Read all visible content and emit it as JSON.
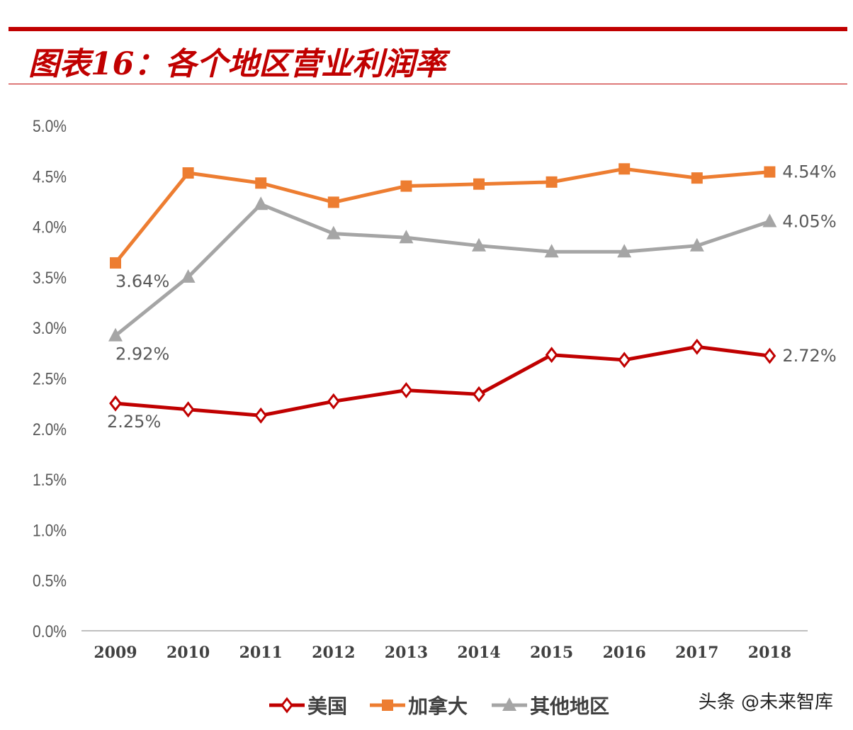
{
  "header": {
    "title": "图表16：各个地区营业利润率"
  },
  "watermark": "头条 @未来智库",
  "chart_data": {
    "type": "line",
    "title": "",
    "categories": [
      "2009",
      "2010",
      "2011",
      "2012",
      "2013",
      "2014",
      "2015",
      "2016",
      "2017",
      "2018"
    ],
    "ylim": [
      0,
      5.0
    ],
    "yticks": [
      "0.0%",
      "0.5%",
      "1.0%",
      "1.5%",
      "2.0%",
      "2.5%",
      "3.0%",
      "3.5%",
      "4.0%",
      "4.5%",
      "5.0%"
    ],
    "grid": false,
    "legend": "bottom",
    "series": [
      {
        "name": "美国",
        "color": "#c00000",
        "marker": "diamond-open",
        "values": [
          2.25,
          2.19,
          2.13,
          2.27,
          2.38,
          2.34,
          2.73,
          2.68,
          2.81,
          2.72
        ],
        "labels": {
          "0": "2.25%",
          "9": "2.72%"
        }
      },
      {
        "name": "加拿大",
        "color": "#ed7d31",
        "marker": "square",
        "values": [
          3.64,
          4.53,
          4.43,
          4.24,
          4.4,
          4.42,
          4.44,
          4.57,
          4.48,
          4.54
        ],
        "labels": {
          "0": "3.64%",
          "9": "4.54%"
        }
      },
      {
        "name": "其他地区",
        "color": "#a5a5a5",
        "marker": "triangle",
        "values": [
          2.92,
          3.5,
          4.22,
          3.93,
          3.89,
          3.81,
          3.75,
          3.75,
          3.81,
          4.05
        ],
        "labels": {
          "0": "2.92%",
          "9": "4.05%"
        }
      }
    ]
  }
}
